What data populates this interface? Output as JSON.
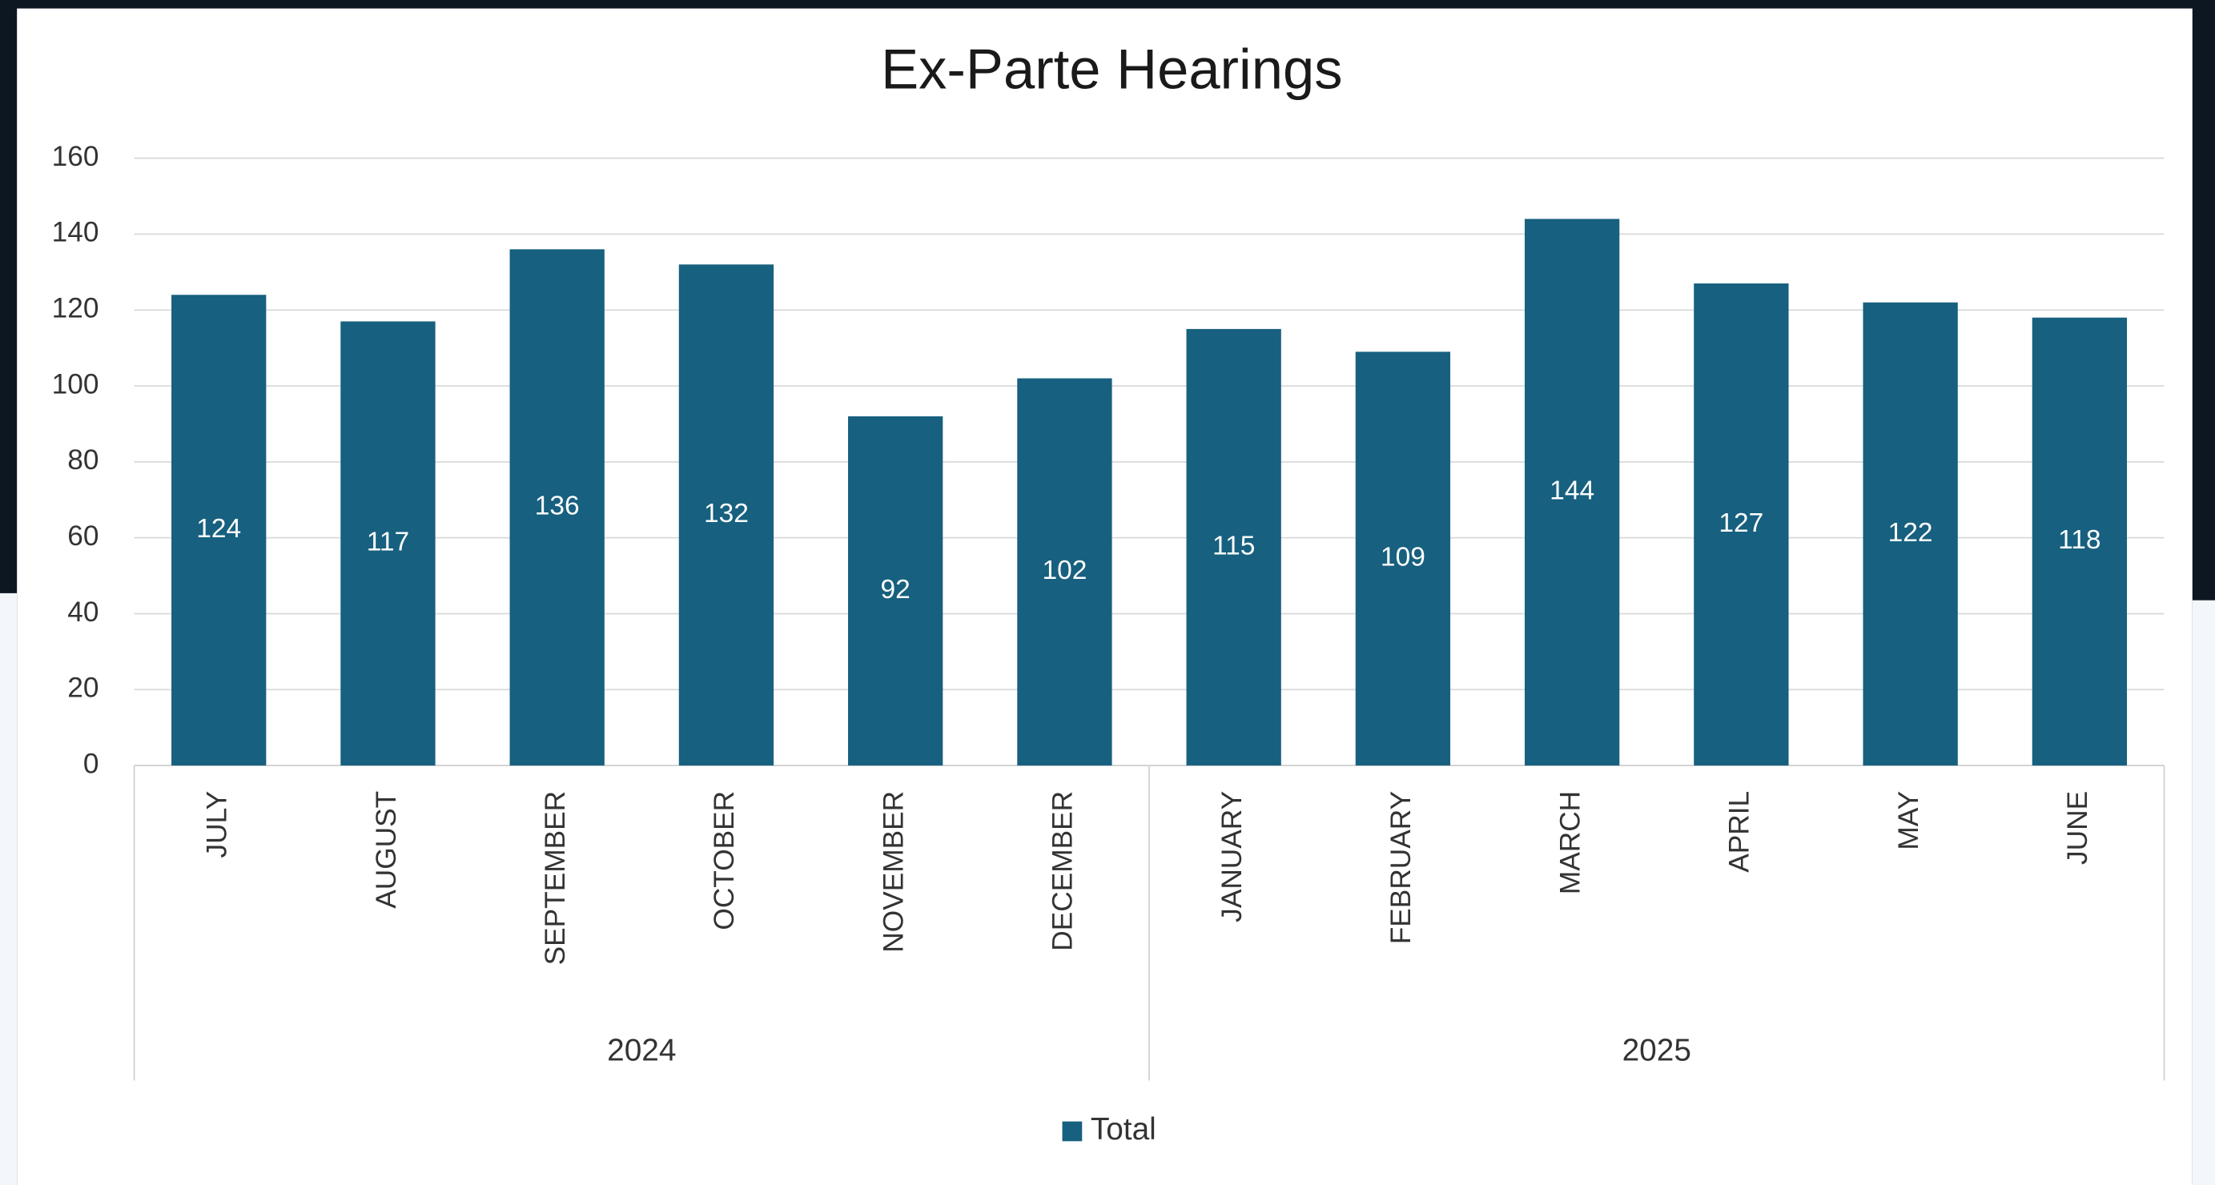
{
  "chart_data": {
    "type": "bar",
    "title": "Ex-Parte Hearings",
    "categories": [
      "JULY",
      "AUGUST",
      "SEPTEMBER",
      "OCTOBER",
      "NOVEMBER",
      "DECEMBER",
      "JANUARY",
      "FEBRUARY",
      "MARCH",
      "APRIL",
      "MAY",
      "JUNE"
    ],
    "groups": [
      "2024",
      "2025"
    ],
    "series": [
      {
        "name": "Total",
        "color": "#17607f",
        "values": [
          124,
          117,
          136,
          132,
          92,
          102,
          115,
          109,
          144,
          127,
          122,
          118
        ]
      }
    ],
    "ylim": [
      0,
      160
    ],
    "yticks": [
      0,
      20,
      40,
      60,
      80,
      100,
      120,
      140,
      160
    ],
    "grid": true,
    "data_labels": true,
    "legend": "bottom"
  }
}
